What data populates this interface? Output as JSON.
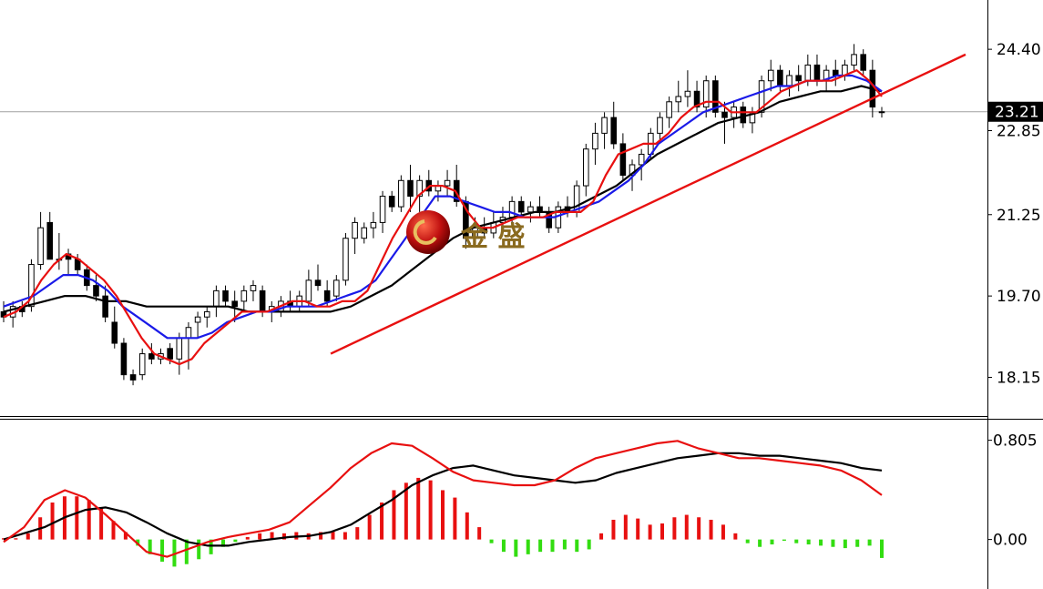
{
  "colors": {
    "background": "#ffffff",
    "up_candle": "#ffffff",
    "down_candle": "#000000",
    "candle_outline": "#000000",
    "ma_fast": "#e81010",
    "ma_mid": "#1a1ae8",
    "ma_slow": "#000000",
    "trendline": "#e81010",
    "macd_positive": "#e81010",
    "macd_negative": "#33dd11",
    "macd_line": "#000000",
    "signal_line": "#e81010",
    "current_price_line": "#a0a0a0",
    "price_tag_bg": "#000000"
  },
  "watermark": {
    "text": "金 盛",
    "logo": "gold-ball-logo"
  },
  "price_axis": {
    "labels": [
      "24.40",
      "22.85",
      "21.25",
      "19.70",
      "18.15"
    ],
    "current_price": "23.21"
  },
  "macd_axis": {
    "labels": [
      "0.805",
      "0.00"
    ]
  },
  "chart_data": [
    {
      "type": "candlestick",
      "ylim": [
        17.5,
        25.2
      ],
      "y_ticks": [
        24.4,
        22.85,
        21.25,
        19.7,
        18.15
      ],
      "current_price": 23.21,
      "candles": [
        [
          19.4,
          19.6,
          19.2,
          19.3
        ],
        [
          19.3,
          19.6,
          19.1,
          19.5
        ],
        [
          19.5,
          19.6,
          19.3,
          19.4
        ],
        [
          19.5,
          20.4,
          19.4,
          20.3
        ],
        [
          20.3,
          21.3,
          20.2,
          21.0
        ],
        [
          21.1,
          21.3,
          20.4,
          20.4
        ],
        [
          20.4,
          20.9,
          20.2,
          20.4
        ],
        [
          20.5,
          20.6,
          20.1,
          20.4
        ],
        [
          20.4,
          20.5,
          20.1,
          20.2
        ],
        [
          20.2,
          20.3,
          19.8,
          19.9
        ],
        [
          19.9,
          20.1,
          19.6,
          19.7
        ],
        [
          19.7,
          19.9,
          19.2,
          19.3
        ],
        [
          19.2,
          19.5,
          18.7,
          18.8
        ],
        [
          18.8,
          18.9,
          18.1,
          18.2
        ],
        [
          18.2,
          18.3,
          18.0,
          18.1
        ],
        [
          18.2,
          18.7,
          18.1,
          18.6
        ],
        [
          18.6,
          18.8,
          18.4,
          18.5
        ],
        [
          18.5,
          18.7,
          18.4,
          18.6
        ],
        [
          18.7,
          18.8,
          18.4,
          18.5
        ],
        [
          18.5,
          19.0,
          18.2,
          18.9
        ],
        [
          18.9,
          19.2,
          18.3,
          19.1
        ],
        [
          19.2,
          19.4,
          18.9,
          19.3
        ],
        [
          19.3,
          19.5,
          19.1,
          19.4
        ],
        [
          19.5,
          19.9,
          19.3,
          19.8
        ],
        [
          19.8,
          19.9,
          19.5,
          19.6
        ],
        [
          19.6,
          19.8,
          19.2,
          19.5
        ],
        [
          19.6,
          19.9,
          19.4,
          19.8
        ],
        [
          19.8,
          20.0,
          19.6,
          19.9
        ],
        [
          19.8,
          19.9,
          19.3,
          19.4
        ],
        [
          19.4,
          19.6,
          19.2,
          19.5
        ],
        [
          19.4,
          19.7,
          19.3,
          19.6
        ],
        [
          19.6,
          19.8,
          19.4,
          19.5
        ],
        [
          19.5,
          19.8,
          19.4,
          19.7
        ],
        [
          19.6,
          20.2,
          19.5,
          20.0
        ],
        [
          20.0,
          20.3,
          19.8,
          19.9
        ],
        [
          19.8,
          20.0,
          19.5,
          19.6
        ],
        [
          19.7,
          20.1,
          19.6,
          20.0
        ],
        [
          20.0,
          20.9,
          19.9,
          20.8
        ],
        [
          20.8,
          21.2,
          20.5,
          21.1
        ],
        [
          20.8,
          21.1,
          20.7,
          21.0
        ],
        [
          21.0,
          21.3,
          20.8,
          21.1
        ],
        [
          21.1,
          21.7,
          20.9,
          21.6
        ],
        [
          21.6,
          21.7,
          21.3,
          21.4
        ],
        [
          21.4,
          22.0,
          21.3,
          21.9
        ],
        [
          21.9,
          22.2,
          21.3,
          21.6
        ],
        [
          21.6,
          22.0,
          21.3,
          21.9
        ],
        [
          21.9,
          22.1,
          21.6,
          21.7
        ],
        [
          21.7,
          21.9,
          21.5,
          21.8
        ],
        [
          21.8,
          22.1,
          21.6,
          21.9
        ],
        [
          21.9,
          22.2,
          21.4,
          21.5
        ],
        [
          21.5,
          21.6,
          20.6,
          20.8
        ],
        [
          20.8,
          21.2,
          20.7,
          21.0
        ],
        [
          21.0,
          21.2,
          20.8,
          20.9
        ],
        [
          20.9,
          21.3,
          20.8,
          21.1
        ],
        [
          21.1,
          21.4,
          20.9,
          21.2
        ],
        [
          21.2,
          21.6,
          21.0,
          21.5
        ],
        [
          21.5,
          21.6,
          21.2,
          21.3
        ],
        [
          21.3,
          21.5,
          21.1,
          21.4
        ],
        [
          21.4,
          21.6,
          21.2,
          21.3
        ],
        [
          21.3,
          21.4,
          20.9,
          21.0
        ],
        [
          21.0,
          21.5,
          20.9,
          21.4
        ],
        [
          21.4,
          21.6,
          21.2,
          21.3
        ],
        [
          21.3,
          21.9,
          21.2,
          21.8
        ],
        [
          21.8,
          22.6,
          21.6,
          22.5
        ],
        [
          22.5,
          23.0,
          22.2,
          22.8
        ],
        [
          22.8,
          23.2,
          22.5,
          23.1
        ],
        [
          23.1,
          23.4,
          22.5,
          22.6
        ],
        [
          22.6,
          22.8,
          21.9,
          22.0
        ],
        [
          22.0,
          22.3,
          21.7,
          22.2
        ],
        [
          22.2,
          22.5,
          21.9,
          22.4
        ],
        [
          22.4,
          22.9,
          22.3,
          22.8
        ],
        [
          22.8,
          23.2,
          22.6,
          23.1
        ],
        [
          23.1,
          23.5,
          22.9,
          23.4
        ],
        [
          23.4,
          23.8,
          23.2,
          23.5
        ],
        [
          23.5,
          24.0,
          23.3,
          23.6
        ],
        [
          23.6,
          23.8,
          23.2,
          23.3
        ],
        [
          23.3,
          23.9,
          23.1,
          23.8
        ],
        [
          23.8,
          23.9,
          23.1,
          23.2
        ],
        [
          23.2,
          23.4,
          22.6,
          23.1
        ],
        [
          23.1,
          23.4,
          22.9,
          23.3
        ],
        [
          23.3,
          23.4,
          22.9,
          23.0
        ],
        [
          23.0,
          23.3,
          22.8,
          23.2
        ],
        [
          23.2,
          23.9,
          23.1,
          23.8
        ],
        [
          23.8,
          24.2,
          23.6,
          24.0
        ],
        [
          24.0,
          24.1,
          23.6,
          23.7
        ],
        [
          23.7,
          24.0,
          23.5,
          23.9
        ],
        [
          23.9,
          24.1,
          23.6,
          23.8
        ],
        [
          23.8,
          24.3,
          23.7,
          24.1
        ],
        [
          24.1,
          24.3,
          23.7,
          23.8
        ],
        [
          23.8,
          24.1,
          23.6,
          24.0
        ],
        [
          24.0,
          24.2,
          23.7,
          23.9
        ],
        [
          23.9,
          24.2,
          23.8,
          24.1
        ],
        [
          24.1,
          24.5,
          24.0,
          24.3
        ],
        [
          24.3,
          24.4,
          23.9,
          24.0
        ],
        [
          24.0,
          24.2,
          23.1,
          23.3
        ],
        [
          23.2,
          23.3,
          23.1,
          23.21
        ]
      ],
      "ma_fast": [
        19.3,
        19.4,
        19.6,
        20.0,
        20.3,
        20.5,
        20.4,
        20.2,
        20.0,
        19.7,
        19.3,
        18.9,
        18.6,
        18.5,
        18.4,
        18.5,
        18.8,
        19.0,
        19.2,
        19.4,
        19.4,
        19.4,
        19.5,
        19.6,
        19.6,
        19.5,
        19.5,
        19.6,
        19.6,
        19.8,
        20.3,
        20.8,
        21.2,
        21.6,
        21.8,
        21.8,
        21.7,
        21.3,
        21.0,
        21.0,
        21.1,
        21.2,
        21.2,
        21.2,
        21.3,
        21.3,
        21.3,
        21.5,
        22.0,
        22.4,
        22.5,
        22.6,
        22.6,
        22.8,
        23.1,
        23.3,
        23.4,
        23.4,
        23.2,
        23.2,
        23.2,
        23.4,
        23.6,
        23.7,
        23.8,
        23.8,
        23.8,
        23.9,
        24.0,
        23.8,
        23.5
      ],
      "ma_mid": [
        19.5,
        19.6,
        19.7,
        19.9,
        20.1,
        20.1,
        20.0,
        19.8,
        19.5,
        19.3,
        19.1,
        18.9,
        18.9,
        18.9,
        19.0,
        19.2,
        19.3,
        19.4,
        19.4,
        19.5,
        19.5,
        19.5,
        19.6,
        19.7,
        19.8,
        20.0,
        20.4,
        20.8,
        21.2,
        21.6,
        21.6,
        21.5,
        21.4,
        21.3,
        21.3,
        21.2,
        21.2,
        21.2,
        21.3,
        21.4,
        21.5,
        21.7,
        21.9,
        22.2,
        22.6,
        22.8,
        23.0,
        23.2,
        23.3,
        23.4,
        23.5,
        23.6,
        23.7,
        23.7,
        23.8,
        23.8,
        23.9,
        23.9,
        23.8,
        23.6
      ],
      "ma_slow": [
        19.4,
        19.5,
        19.6,
        19.7,
        19.7,
        19.6,
        19.6,
        19.5,
        19.5,
        19.5,
        19.5,
        19.5,
        19.4,
        19.4,
        19.4,
        19.4,
        19.4,
        19.5,
        19.7,
        19.9,
        20.2,
        20.5,
        20.8,
        21.0,
        21.1,
        21.2,
        21.3,
        21.3,
        21.4,
        21.6,
        21.8,
        22.1,
        22.4,
        22.6,
        22.8,
        23.0,
        23.1,
        23.2,
        23.4,
        23.5,
        23.6,
        23.6,
        23.7,
        23.6
      ],
      "trendline": {
        "from": [
          18.6
        ],
        "to": [
          24.3
        ]
      }
    },
    {
      "type": "macd",
      "ylim": [
        -0.35,
        0.95
      ],
      "y_ticks": [
        0.805,
        0.0
      ],
      "histogram": [
        0.01,
        0.01,
        0.05,
        0.18,
        0.3,
        0.35,
        0.35,
        0.32,
        0.25,
        0.15,
        0.06,
        -0.05,
        -0.12,
        -0.18,
        -0.22,
        -0.2,
        -0.16,
        -0.12,
        -0.06,
        -0.02,
        0.02,
        0.05,
        0.06,
        0.05,
        0.06,
        0.05,
        0.06,
        0.07,
        0.06,
        0.1,
        0.2,
        0.3,
        0.4,
        0.46,
        0.5,
        0.48,
        0.4,
        0.34,
        0.22,
        0.1,
        -0.03,
        -0.1,
        -0.14,
        -0.12,
        -0.1,
        -0.1,
        -0.08,
        -0.1,
        -0.08,
        0.05,
        0.16,
        0.2,
        0.17,
        0.12,
        0.13,
        0.18,
        0.2,
        0.18,
        0.16,
        0.12,
        0.05,
        -0.03,
        -0.06,
        -0.04,
        -0.01,
        -0.03,
        -0.04,
        -0.05,
        -0.06,
        -0.07,
        -0.06,
        -0.05,
        -0.15
      ],
      "macd_line": [
        0.0,
        0.05,
        0.1,
        0.18,
        0.24,
        0.26,
        0.22,
        0.14,
        0.05,
        -0.02,
        -0.05,
        -0.05,
        -0.02,
        0.0,
        0.02,
        0.03,
        0.06,
        0.12,
        0.22,
        0.32,
        0.44,
        0.52,
        0.58,
        0.6,
        0.56,
        0.52,
        0.5,
        0.48,
        0.46,
        0.48,
        0.54,
        0.58,
        0.62,
        0.66,
        0.68,
        0.7,
        0.7,
        0.68,
        0.68,
        0.66,
        0.64,
        0.62,
        0.58,
        0.56
      ],
      "signal_line": [
        -0.02,
        0.1,
        0.32,
        0.4,
        0.34,
        0.2,
        0.05,
        -0.1,
        -0.14,
        -0.08,
        -0.02,
        0.02,
        0.05,
        0.08,
        0.14,
        0.28,
        0.42,
        0.58,
        0.7,
        0.78,
        0.76,
        0.66,
        0.55,
        0.48,
        0.46,
        0.44,
        0.44,
        0.48,
        0.58,
        0.66,
        0.7,
        0.74,
        0.78,
        0.8,
        0.74,
        0.7,
        0.66,
        0.66,
        0.64,
        0.62,
        0.6,
        0.56,
        0.48,
        0.36
      ]
    }
  ]
}
